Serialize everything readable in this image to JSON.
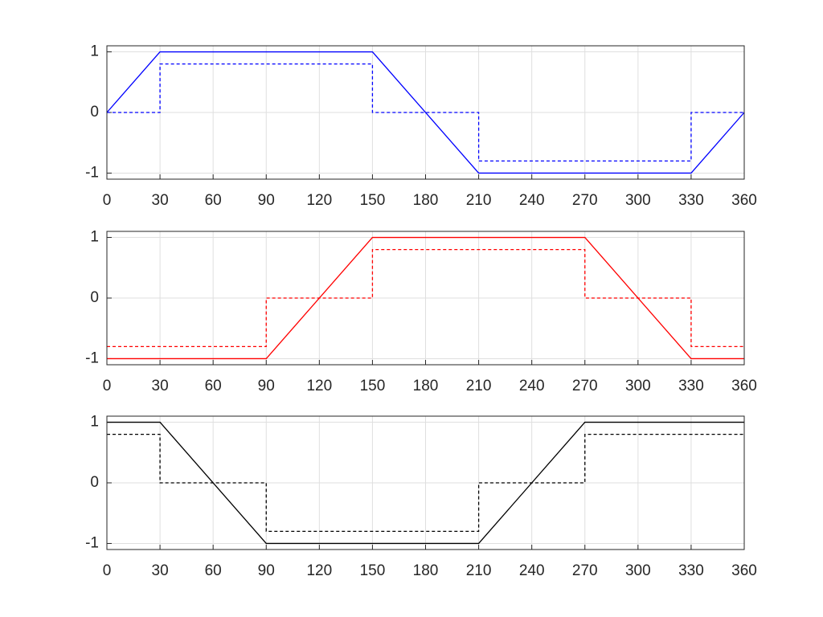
{
  "chart_data": [
    {
      "type": "line",
      "xlim": [
        0,
        360
      ],
      "ylim": [
        -1.1,
        1.1
      ],
      "xticks": [
        0,
        30,
        60,
        90,
        120,
        150,
        180,
        210,
        240,
        270,
        300,
        330,
        360
      ],
      "yticks": [
        -1,
        0,
        1
      ],
      "grid": true,
      "series": [
        {
          "color": "#0000ff",
          "dashed": false,
          "x": [
            0,
            30,
            150,
            210,
            330,
            360
          ],
          "values": [
            0,
            1,
            1,
            -1,
            -1,
            0
          ]
        },
        {
          "color": "#0000ff",
          "dashed": true,
          "x": [
            0,
            30,
            30,
            150,
            150,
            210,
            210,
            330,
            330,
            360
          ],
          "values": [
            0,
            0,
            0.8,
            0.8,
            0,
            0,
            -0.8,
            -0.8,
            0,
            0
          ]
        }
      ]
    },
    {
      "type": "line",
      "xlim": [
        0,
        360
      ],
      "ylim": [
        -1.1,
        1.1
      ],
      "xticks": [
        0,
        30,
        60,
        90,
        120,
        150,
        180,
        210,
        240,
        270,
        300,
        330,
        360
      ],
      "yticks": [
        -1,
        0,
        1
      ],
      "grid": true,
      "series": [
        {
          "color": "#ff0000",
          "dashed": false,
          "x": [
            0,
            90,
            150,
            270,
            330,
            360
          ],
          "values": [
            -1,
            -1,
            1,
            1,
            -1,
            -1
          ]
        },
        {
          "color": "#ff0000",
          "dashed": true,
          "x": [
            0,
            90,
            90,
            150,
            150,
            270,
            270,
            330,
            330,
            360
          ],
          "values": [
            -0.8,
            -0.8,
            0,
            0,
            0.8,
            0.8,
            0,
            0,
            -0.8,
            -0.8
          ]
        }
      ]
    },
    {
      "type": "line",
      "xlim": [
        0,
        360
      ],
      "ylim": [
        -1.1,
        1.1
      ],
      "xticks": [
        0,
        30,
        60,
        90,
        120,
        150,
        180,
        210,
        240,
        270,
        300,
        330,
        360
      ],
      "yticks": [
        -1,
        0,
        1
      ],
      "grid": true,
      "series": [
        {
          "color": "#000000",
          "dashed": false,
          "x": [
            0,
            30,
            90,
            210,
            270,
            360
          ],
          "values": [
            1,
            1,
            -1,
            -1,
            1,
            1
          ]
        },
        {
          "color": "#000000",
          "dashed": true,
          "x": [
            0,
            30,
            30,
            90,
            90,
            210,
            210,
            270,
            270,
            360
          ],
          "values": [
            0.8,
            0.8,
            0,
            0,
            -0.8,
            -0.8,
            0,
            0,
            0.8,
            0.8
          ]
        }
      ]
    }
  ]
}
